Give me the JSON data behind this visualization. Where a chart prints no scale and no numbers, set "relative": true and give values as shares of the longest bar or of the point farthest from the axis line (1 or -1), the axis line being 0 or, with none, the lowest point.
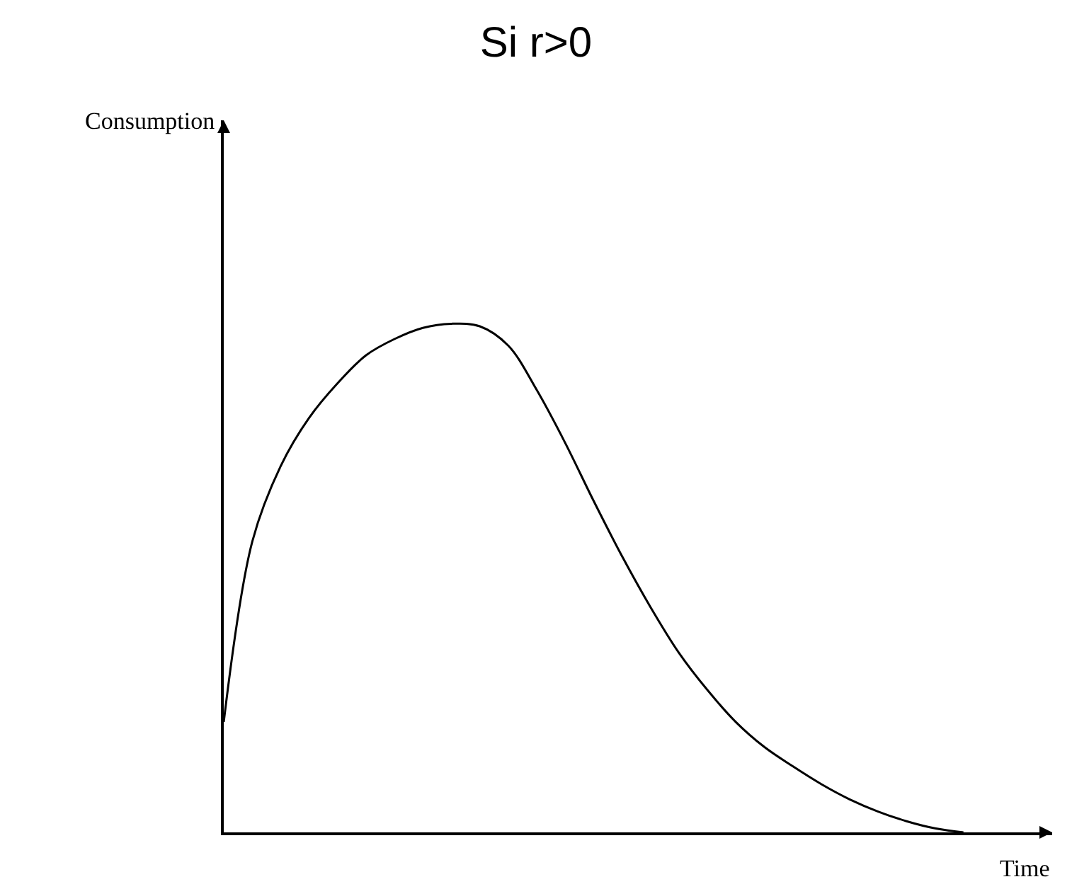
{
  "chart_data": {
    "type": "line",
    "title": "Si r>0",
    "annotations": [
      "Consumption",
      "Time"
    ],
    "relative": true,
    "marker": "none",
    "line_style": "solid",
    "categories": [
      null,
      null,
      null,
      null,
      null,
      null,
      null,
      null,
      null,
      null,
      null,
      null,
      null,
      null,
      null,
      null,
      null,
      null,
      null,
      null,
      null,
      null,
      null,
      null,
      null,
      null,
      null
    ],
    "series": [
      {
        "color": "#000000",
        "values": [
          0.217,
          0.571,
          0.72,
          0.815,
          0.883,
          0.938,
          0.97,
          0.992,
          1.0,
          0.995,
          0.957,
          0.87,
          0.766,
          0.652,
          0.543,
          0.443,
          0.353,
          0.28,
          0.217,
          0.168,
          0.13,
          0.095,
          0.065,
          0.041,
          0.022,
          0.008,
          0.0
        ]
      }
    ]
  }
}
